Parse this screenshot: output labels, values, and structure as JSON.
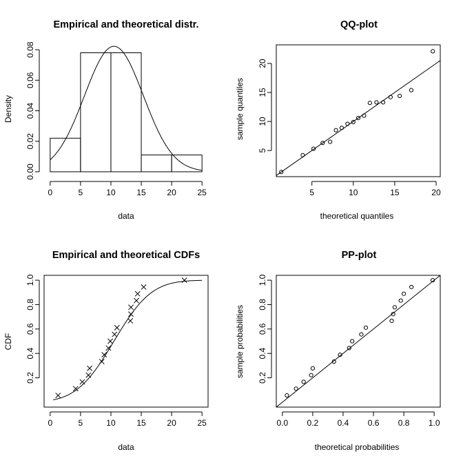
{
  "chart_data": [
    {
      "type": "bar",
      "title": "Empirical and theoretical distr.",
      "xlabel": "data",
      "ylabel": "Density",
      "xlim": [
        0,
        25
      ],
      "ylim": [
        0,
        0.08
      ],
      "xticks": [
        "0",
        "5",
        "10",
        "15",
        "20",
        "25"
      ],
      "yticks": [
        "0.00",
        "0.02",
        "0.04",
        "0.06",
        "0.08"
      ],
      "bins": [
        {
          "from": 0,
          "to": 5,
          "density": 0.022
        },
        {
          "from": 5,
          "to": 10,
          "density": 0.078
        },
        {
          "from": 10,
          "to": 15,
          "density": 0.078
        },
        {
          "from": 15,
          "to": 20,
          "density": 0.011
        },
        {
          "from": 20,
          "to": 25,
          "density": 0.011
        }
      ],
      "density_curve": {
        "distribution": "normal",
        "mean": 10.5,
        "sd": 4.85
      }
    },
    {
      "type": "scatter",
      "title": "QQ-plot",
      "xlabel": "theoretical quantiles",
      "ylabel": "sample quantiles",
      "xlim": [
        0.7,
        20.5
      ],
      "ylim": [
        0.5,
        23.2
      ],
      "xticks": [
        "5",
        "10",
        "15",
        "20"
      ],
      "yticks": [
        "5",
        "10",
        "15",
        "20"
      ],
      "reference_line": "y = x",
      "points": [
        [
          1.3,
          1.3
        ],
        [
          3.9,
          4.2
        ],
        [
          5.2,
          5.3
        ],
        [
          6.3,
          6.3
        ],
        [
          7.2,
          6.5
        ],
        [
          7.9,
          8.5
        ],
        [
          8.6,
          8.9
        ],
        [
          9.3,
          9.6
        ],
        [
          10.0,
          9.9
        ],
        [
          10.6,
          10.6
        ],
        [
          11.3,
          11.0
        ],
        [
          12.0,
          13.2
        ],
        [
          12.8,
          13.3
        ],
        [
          13.6,
          13.3
        ],
        [
          14.5,
          14.2
        ],
        [
          15.6,
          14.4
        ],
        [
          17.0,
          15.4
        ],
        [
          19.6,
          22.1
        ]
      ]
    },
    {
      "type": "scatter",
      "title": "Empirical and theoretical CDFs",
      "xlabel": "data",
      "ylabel": "CDF",
      "xlim": [
        0,
        25
      ],
      "ylim": [
        0,
        1
      ],
      "xticks": [
        "0",
        "5",
        "10",
        "15",
        "20",
        "25"
      ],
      "yticks": [
        "0.2",
        "0.4",
        "0.6",
        "0.8",
        "1.0"
      ],
      "points": [
        [
          1.3,
          0.056
        ],
        [
          4.2,
          0.111
        ],
        [
          5.3,
          0.167
        ],
        [
          6.3,
          0.222
        ],
        [
          6.5,
          0.278
        ],
        [
          8.5,
          0.333
        ],
        [
          8.9,
          0.389
        ],
        [
          9.6,
          0.444
        ],
        [
          9.9,
          0.5
        ],
        [
          10.6,
          0.556
        ],
        [
          11.0,
          0.611
        ],
        [
          13.2,
          0.667
        ],
        [
          13.3,
          0.722
        ],
        [
          13.3,
          0.778
        ],
        [
          14.2,
          0.833
        ],
        [
          14.4,
          0.889
        ],
        [
          15.4,
          0.944
        ],
        [
          22.1,
          1.0
        ]
      ],
      "cdf_curve": {
        "distribution": "normal",
        "mean": 10.5,
        "sd": 4.85
      }
    },
    {
      "type": "scatter",
      "title": "PP-plot",
      "xlabel": "theoretical probabilities",
      "ylabel": "sample probabilities",
      "xlim": [
        0,
        1
      ],
      "ylim": [
        0,
        1
      ],
      "xticks": [
        "0.0",
        "0.2",
        "0.4",
        "0.6",
        "0.8",
        "1.0"
      ],
      "yticks": [
        "0.2",
        "0.4",
        "0.6",
        "0.8",
        "1.0"
      ],
      "reference_line": "y = x",
      "points": [
        [
          0.03,
          0.056
        ],
        [
          0.09,
          0.111
        ],
        [
          0.14,
          0.167
        ],
        [
          0.19,
          0.222
        ],
        [
          0.2,
          0.278
        ],
        [
          0.34,
          0.333
        ],
        [
          0.38,
          0.389
        ],
        [
          0.44,
          0.444
        ],
        [
          0.46,
          0.5
        ],
        [
          0.52,
          0.556
        ],
        [
          0.55,
          0.611
        ],
        [
          0.72,
          0.667
        ],
        [
          0.73,
          0.722
        ],
        [
          0.74,
          0.778
        ],
        [
          0.78,
          0.833
        ],
        [
          0.8,
          0.889
        ],
        [
          0.85,
          0.944
        ],
        [
          0.99,
          1.0
        ]
      ]
    }
  ]
}
